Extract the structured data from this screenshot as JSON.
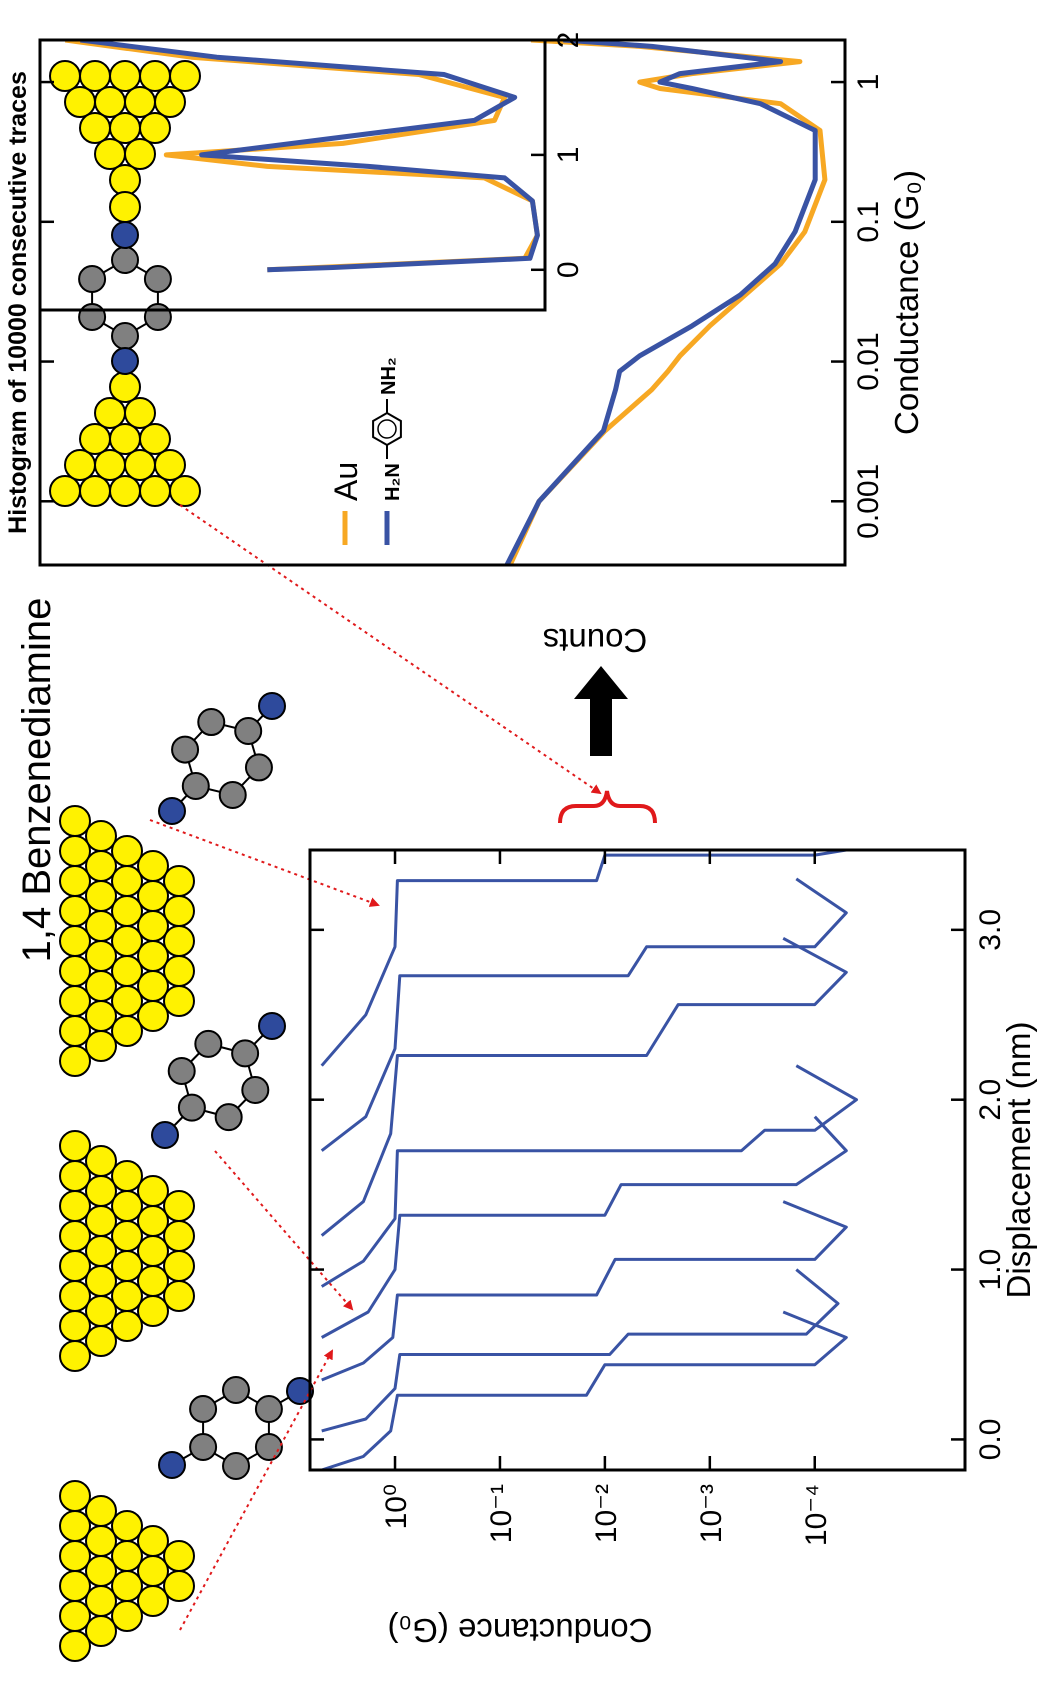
{
  "title": "1,4 Benzenediamine",
  "chart_data": [
    {
      "type": "line",
      "xlabel": "Displacement (nm)",
      "ylabel": "Conductance (G₀)",
      "log_y": true,
      "xlim": [
        -0.18,
        3.47
      ],
      "ylim": [
        3.7e-06,
        6.46
      ],
      "xticks": [
        {
          "value": 0,
          "label": "0.0"
        },
        {
          "value": 1,
          "label": "1.0"
        },
        {
          "value": 2,
          "label": "2.0"
        },
        {
          "value": 3,
          "label": "3.0"
        }
      ],
      "yticks": [
        {
          "value": 1,
          "label": "10⁰"
        },
        {
          "value": 0.1,
          "label": "10⁻¹"
        },
        {
          "value": 0.01,
          "label": "10⁻²"
        },
        {
          "value": 0.001,
          "label": "10⁻³"
        },
        {
          "value": 0.0001,
          "label": "10⁻⁴"
        }
      ],
      "series": [
        {
          "color": "#3953a4",
          "x": [
            -0.18,
            -0.1,
            0.05,
            0.26,
            0.26,
            0.44,
            0.44,
            0.6,
            0.75
          ],
          "values": [
            5,
            2,
            1.1,
            0.95,
            0.015,
            0.01,
            0.0001,
            5e-05,
            0.0002
          ]
        },
        {
          "color": "#3953a4",
          "x": [
            0.05,
            0.12,
            0.3,
            0.5,
            0.5,
            0.62,
            0.62,
            0.8,
            1.0
          ],
          "values": [
            5,
            1.9,
            1,
            0.9,
            0.009,
            0.006,
            0.00012,
            6e-05,
            0.00015
          ]
        },
        {
          "color": "#3953a4",
          "x": [
            0.35,
            0.45,
            0.6,
            0.85,
            0.85,
            1.06,
            1.06,
            1.25,
            1.4
          ],
          "values": [
            5,
            2,
            1.05,
            0.95,
            0.012,
            0.008,
            0.0001,
            5e-05,
            0.0002
          ]
        },
        {
          "color": "#3953a4",
          "x": [
            0.6,
            0.75,
            1.0,
            1.32,
            1.32,
            1.5,
            1.5,
            1.7,
            1.9
          ],
          "values": [
            5,
            1.8,
            1,
            0.9,
            0.01,
            0.007,
            0.00015,
            5e-05,
            0.0001
          ]
        },
        {
          "color": "#3953a4",
          "x": [
            0.9,
            1.05,
            1.3,
            1.7,
            1.7,
            1.82,
            1.82,
            2.0,
            2.2
          ],
          "values": [
            5,
            2,
            1,
            0.95,
            0.0005,
            0.0003,
            0.0001,
            4e-05,
            0.00015
          ]
        },
        {
          "color": "#3953a4",
          "x": [
            1.2,
            1.4,
            1.8,
            2.26,
            2.26,
            2.56,
            2.56,
            2.75,
            2.95
          ],
          "values": [
            5,
            2,
            1.1,
            0.95,
            0.004,
            0.002,
            0.0001,
            5e-05,
            0.0002
          ]
        },
        {
          "color": "#3953a4",
          "x": [
            1.7,
            1.9,
            2.3,
            2.73,
            2.73,
            2.9,
            2.9,
            3.1,
            3.3
          ],
          "values": [
            5,
            1.9,
            1,
            0.9,
            0.006,
            0.004,
            0.0001,
            5e-05,
            0.00015
          ]
        },
        {
          "color": "#3953a4",
          "x": [
            2.2,
            2.5,
            2.9,
            3.29,
            3.29,
            3.44,
            3.44,
            3.47
          ],
          "values": [
            5,
            1.9,
            1,
            0.95,
            0.012,
            0.01,
            0.0001,
            5e-05
          ]
        }
      ]
    },
    {
      "type": "line",
      "title": "Histogram of 10000 consecutive traces",
      "xlabel": "Conductance (G₀)",
      "ylabel": "Counts",
      "log_x": true,
      "xlim": [
        0.00035,
        2.0
      ],
      "ylim": [
        0,
        100
      ],
      "xticks": [
        0.001,
        0.01,
        0.1,
        1
      ],
      "x": [
        0.00035,
        0.001,
        0.0032,
        0.0063,
        0.0085,
        0.011,
        0.018,
        0.03,
        0.05,
        0.085,
        0.2,
        0.45,
        0.7,
        0.9,
        1.0,
        1.15,
        1.4,
        1.8,
        2.0
      ],
      "series": [
        {
          "name": "Au",
          "color": "#f7a823",
          "values": [
            41.6,
            38,
            29.8,
            24,
            22,
            20.5,
            16.8,
            12.4,
            8,
            5,
            2.5,
            3.1,
            8,
            23,
            25.5,
            19,
            5.6,
            25.5,
            39
          ]
        },
        {
          "name": "H₂N",
          "name_end": "NH₂",
          "color": "#3953a4",
          "values": [
            42,
            38,
            30,
            28.5,
            28,
            25.5,
            19,
            13,
            8.7,
            6.2,
            3.7,
            3.7,
            10.5,
            19,
            23,
            20.5,
            8,
            24,
            35
          ]
        }
      ]
    },
    {
      "type": "line",
      "xlim": [
        -0.35,
        2
      ],
      "ylim": [
        0,
        100
      ],
      "xticks": [
        0,
        1,
        2
      ],
      "x": [
        0,
        0.02,
        0.1,
        0.3,
        0.6,
        0.8,
        0.9,
        1.0,
        1.1,
        1.3,
        1.5,
        1.7,
        1.85,
        2.0
      ],
      "series": [
        {
          "color": "#f7a823",
          "values": [
            55,
            45,
            4,
            1.5,
            2.5,
            12,
            55,
            75,
            40,
            10,
            8,
            25,
            70,
            95
          ]
        },
        {
          "color": "#3953a4",
          "values": [
            55,
            42,
            3,
            1.5,
            2.5,
            8,
            35,
            68,
            50,
            14,
            6,
            20,
            65,
            92
          ]
        }
      ]
    }
  ]
}
